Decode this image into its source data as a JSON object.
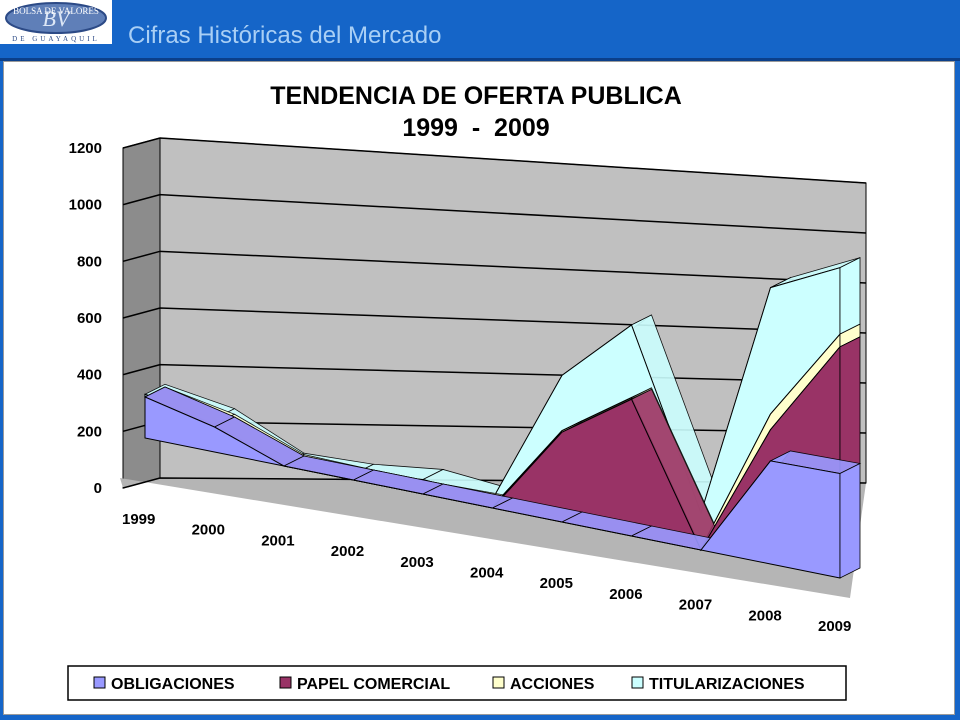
{
  "header": {
    "title": "Cifras Históricas del Mercado",
    "logo_text_top": "BOLSA DE VALORES",
    "logo_text_bottom": "DE GUAYAQUIL",
    "logo_initials": "BV",
    "colors": {
      "bar": "#1565c8",
      "title": "#a9cff5"
    }
  },
  "chart_data": {
    "type": "area",
    "stacked": true,
    "view": "3d",
    "title_lines": [
      "TENDENCIA DE OFERTA PUBLICA",
      "1999  -  2009"
    ],
    "categories": [
      "1999",
      "2000",
      "2001",
      "2002",
      "2003",
      "2004",
      "2005",
      "2006",
      "2007",
      "2008",
      "2009"
    ],
    "y_ticks": [
      0,
      200,
      400,
      600,
      800,
      1000,
      1200
    ],
    "ylim": [
      0,
      1200
    ],
    "grid": true,
    "legend_position": "bottom",
    "series": [
      {
        "name": "OBLIGACIONES",
        "color": "#9999ff",
        "values": [
          150,
          90,
          0,
          0,
          0,
          0,
          0,
          0,
          0,
          330,
          330
        ]
      },
      {
        "name": "PAPEL COMERCIAL",
        "color": "#993366",
        "values": [
          0,
          0,
          0,
          0,
          0,
          0,
          300,
          450,
          0,
          100,
          400
        ]
      },
      {
        "name": "ACCIONES",
        "color": "#ffffcc",
        "values": [
          0,
          10,
          5,
          0,
          0,
          5,
          5,
          5,
          5,
          50,
          40
        ]
      },
      {
        "name": "TITULARIZACIONES",
        "color": "#ccffff",
        "values": [
          10,
          20,
          5,
          20,
          50,
          25,
          185,
          240,
          115,
          405,
          210
        ]
      }
    ]
  }
}
